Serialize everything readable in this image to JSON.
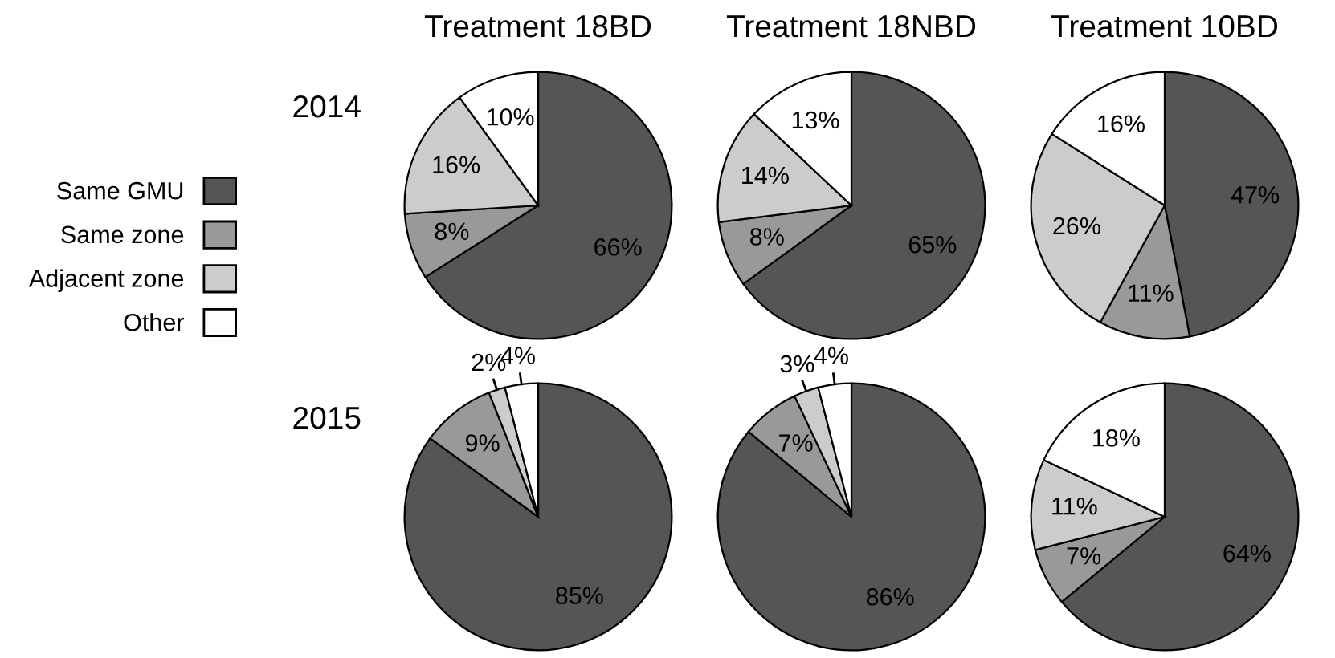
{
  "chart_data": [
    {
      "type": "pie",
      "title": "Treatment 18BD",
      "annotations": [
        "2014"
      ],
      "legend": "left",
      "categories": [
        "Same GMU",
        "Same zone",
        "Adjacent zone",
        "Other"
      ],
      "values": [
        66,
        8,
        16,
        10
      ],
      "value_labels": [
        "66%",
        "8%",
        "16%",
        "10%"
      ],
      "colors": [
        "#555555",
        "#999999",
        "#cccccc",
        "#ffffff"
      ]
    },
    {
      "type": "pie",
      "title": "Treatment 18NBD",
      "categories": [
        null,
        null,
        null,
        null
      ],
      "values": [
        65,
        8,
        14,
        13
      ],
      "value_labels": [
        "65%",
        "8%",
        "14%",
        "13%"
      ],
      "colors": [
        "#555555",
        "#999999",
        "#cccccc",
        "#ffffff"
      ]
    },
    {
      "type": "pie",
      "title": "Treatment 10BD",
      "categories": [
        null,
        null,
        null,
        null
      ],
      "values": [
        47,
        11,
        26,
        16
      ],
      "value_labels": [
        "47%",
        "11%",
        "26%",
        "16%"
      ],
      "colors": [
        "#555555",
        "#999999",
        "#cccccc",
        "#ffffff"
      ]
    },
    {
      "type": "pie",
      "annotations": [
        "2015"
      ],
      "categories": [
        null,
        null,
        null,
        null
      ],
      "values": [
        85,
        9,
        2,
        4
      ],
      "value_labels": [
        "85%",
        "9%",
        "2%",
        "4%"
      ],
      "colors": [
        "#555555",
        "#999999",
        "#cccccc",
        "#ffffff"
      ]
    },
    {
      "type": "pie",
      "categories": [
        null,
        null,
        null,
        null
      ],
      "values": [
        86,
        7,
        3,
        4
      ],
      "value_labels": [
        "86%",
        "7%",
        "3%",
        "4%"
      ],
      "colors": [
        "#555555",
        "#999999",
        "#cccccc",
        "#ffffff"
      ]
    },
    {
      "type": "pie",
      "categories": [
        null,
        null,
        null,
        null
      ],
      "values": [
        64,
        7,
        11,
        18
      ],
      "value_labels": [
        "64%",
        "7%",
        "11%",
        "18%"
      ],
      "colors": [
        "#555555",
        "#999999",
        "#cccccc",
        "#ffffff"
      ]
    }
  ]
}
